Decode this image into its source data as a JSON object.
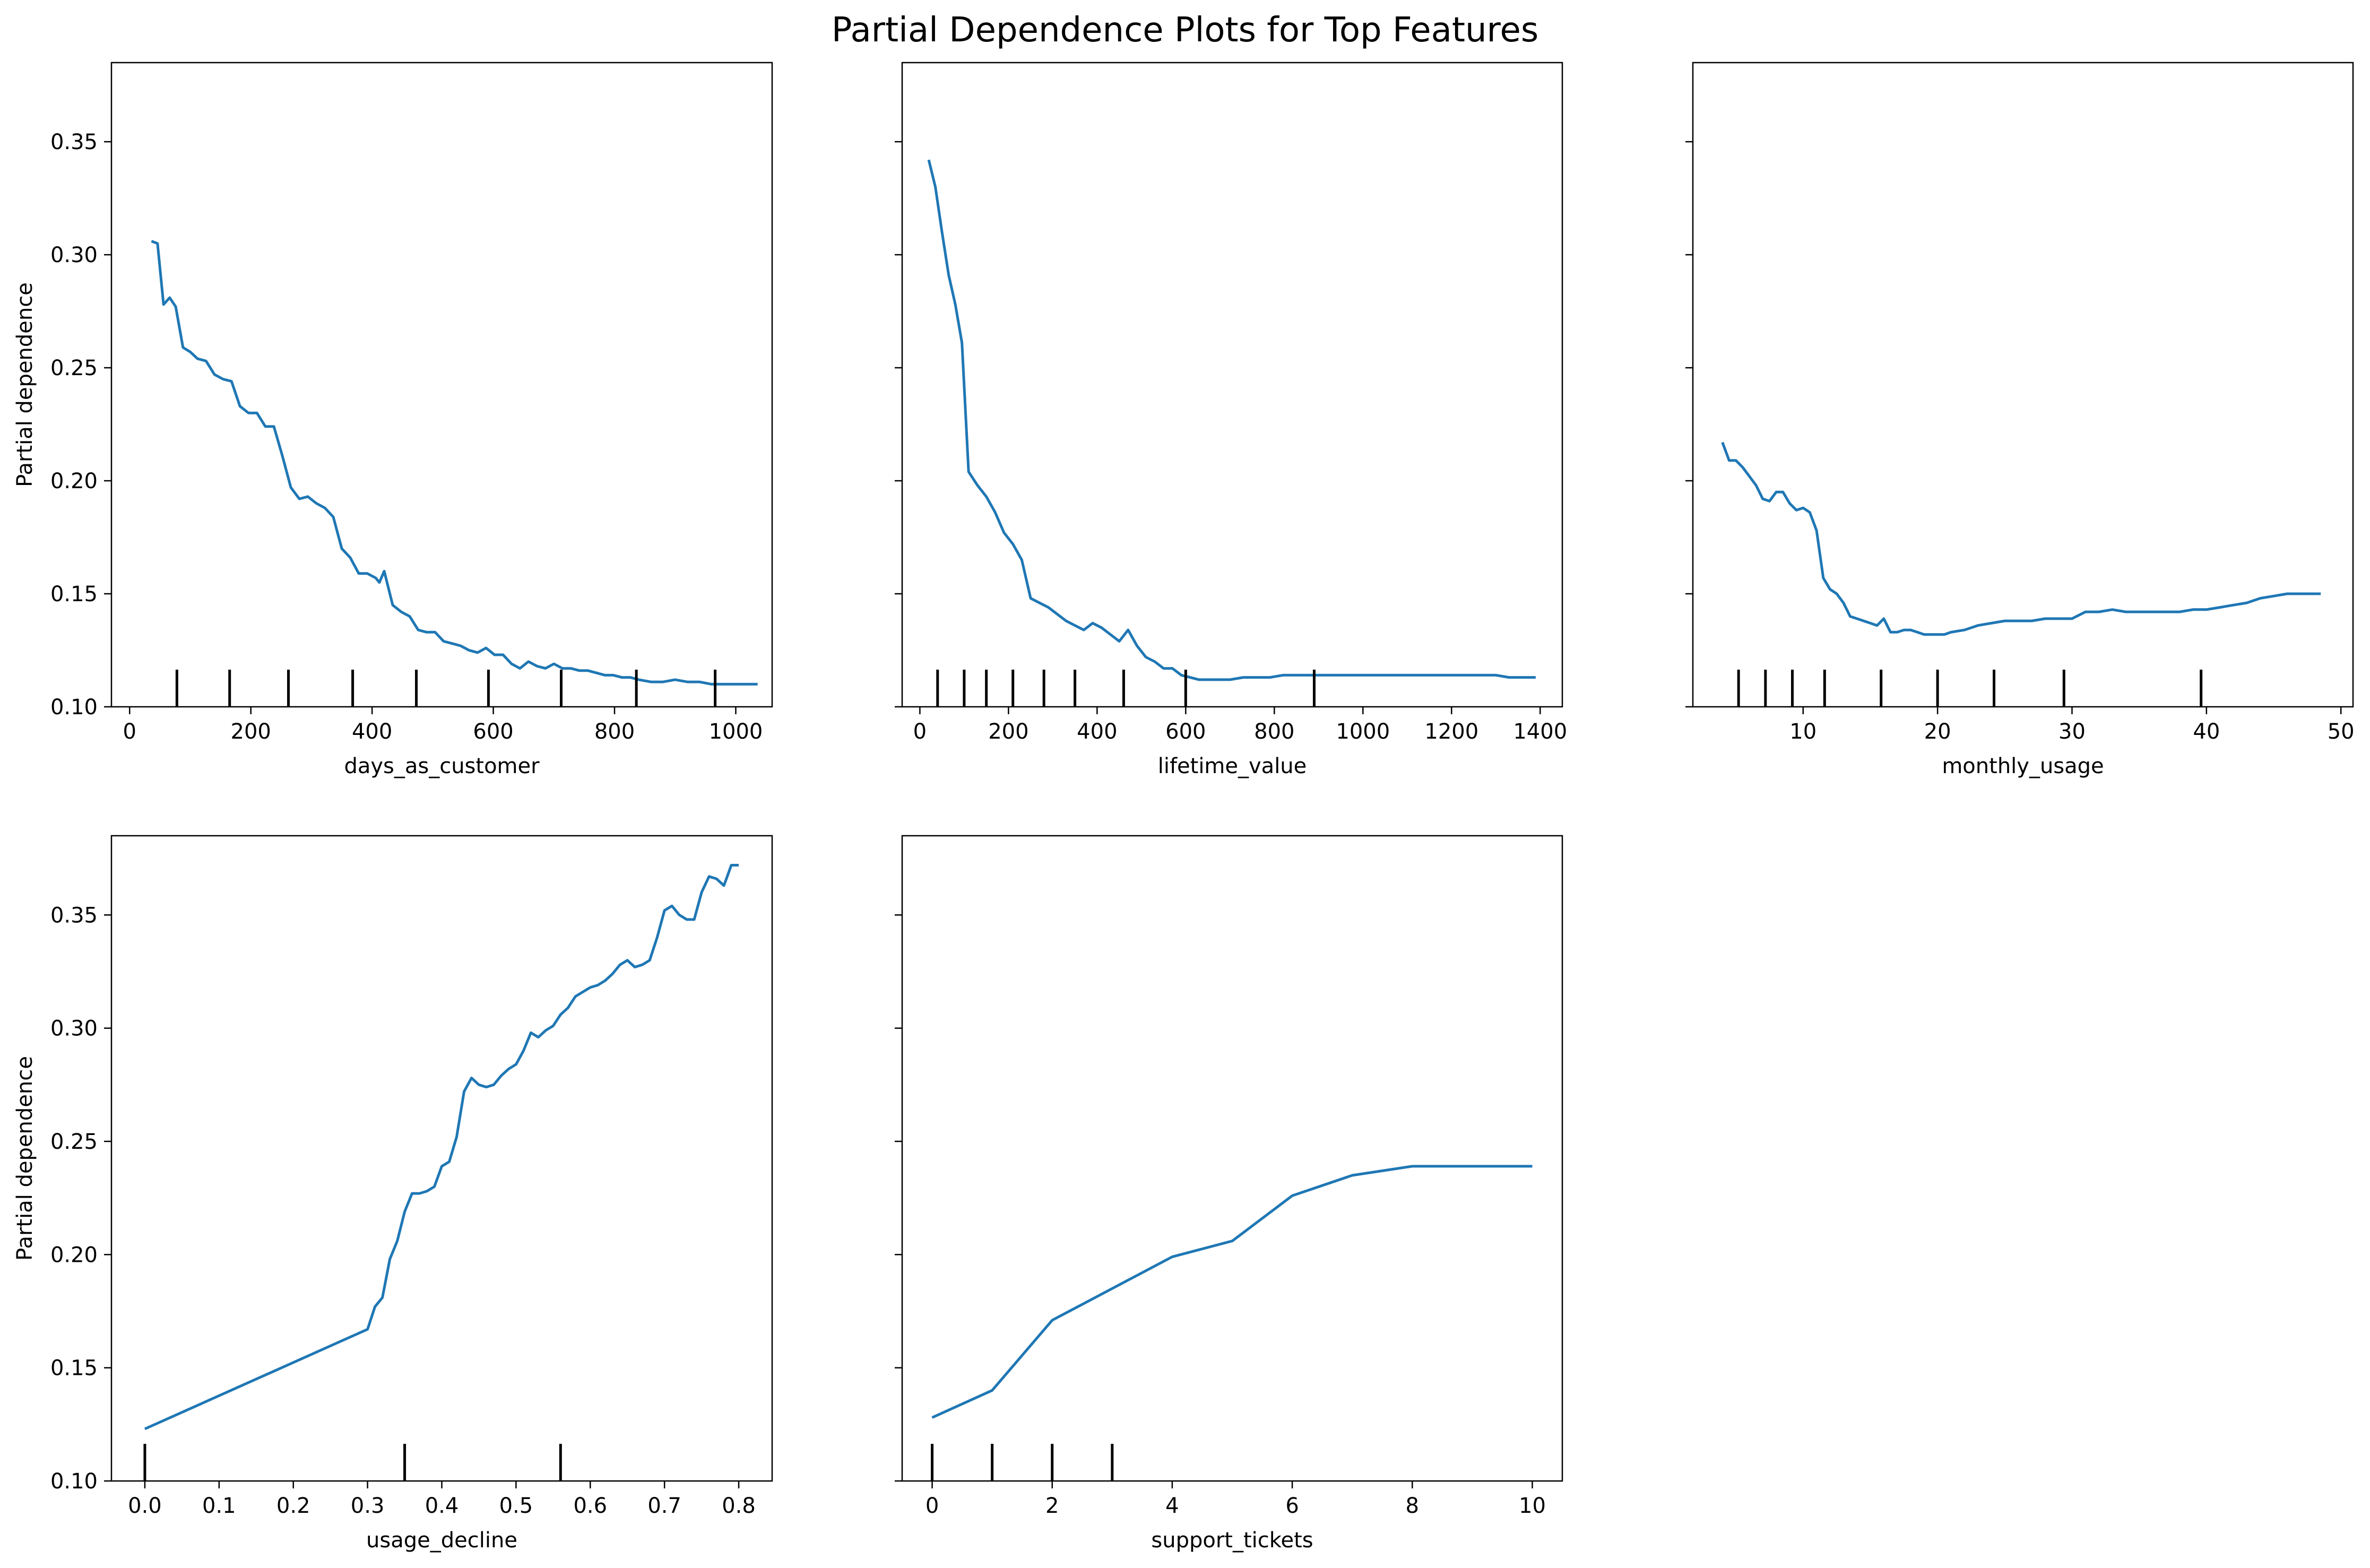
{
  "title": "Partial Dependence Plots for Top Features",
  "colors": {
    "line": "#1f77b4",
    "rug": "#000000",
    "frame": "#000000",
    "background": "#ffffff"
  },
  "chart_data": [
    {
      "type": "line",
      "xlabel": "days_as_customer",
      "ylabel": "Partial dependence",
      "xlim": [
        -30,
        1060
      ],
      "ylim": [
        0.1,
        0.385
      ],
      "xticks": [
        0,
        200,
        400,
        600,
        800,
        1000
      ],
      "yticks": [
        0.1,
        0.15,
        0.2,
        0.25,
        0.3,
        0.35
      ],
      "show_yticklabels": true,
      "rug_deciles": [
        78,
        165,
        262,
        368,
        473,
        592,
        712,
        836,
        966
      ],
      "x": [
        36,
        46,
        56,
        66,
        76,
        88,
        100,
        112,
        126,
        140,
        154,
        168,
        182,
        196,
        210,
        224,
        238,
        252,
        266,
        280,
        294,
        308,
        322,
        336,
        350,
        364,
        378,
        392,
        406,
        412,
        420,
        434,
        448,
        462,
        476,
        490,
        504,
        518,
        532,
        546,
        560,
        574,
        588,
        602,
        616,
        630,
        644,
        658,
        672,
        686,
        700,
        714,
        728,
        742,
        756,
        770,
        784,
        798,
        812,
        826,
        840,
        860,
        880,
        900,
        920,
        940,
        960,
        980,
        1000,
        1020,
        1036
      ],
      "y": [
        0.306,
        0.305,
        0.278,
        0.281,
        0.277,
        0.259,
        0.257,
        0.254,
        0.253,
        0.247,
        0.245,
        0.244,
        0.233,
        0.23,
        0.23,
        0.224,
        0.224,
        0.211,
        0.197,
        0.192,
        0.193,
        0.19,
        0.188,
        0.184,
        0.17,
        0.166,
        0.159,
        0.159,
        0.157,
        0.155,
        0.16,
        0.145,
        0.142,
        0.14,
        0.134,
        0.133,
        0.133,
        0.129,
        0.128,
        0.127,
        0.125,
        0.124,
        0.126,
        0.123,
        0.123,
        0.119,
        0.117,
        0.12,
        0.118,
        0.117,
        0.119,
        0.117,
        0.117,
        0.116,
        0.116,
        0.115,
        0.114,
        0.114,
        0.113,
        0.113,
        0.112,
        0.111,
        0.111,
        0.112,
        0.111,
        0.111,
        0.11,
        0.11,
        0.11,
        0.11,
        0.11
      ]
    },
    {
      "type": "line",
      "xlabel": "lifetime_value",
      "ylabel": "",
      "xlim": [
        -40,
        1450
      ],
      "ylim": [
        0.1,
        0.385
      ],
      "xticks": [
        0,
        200,
        400,
        600,
        800,
        1000,
        1200,
        1400
      ],
      "yticks": [
        0.1,
        0.15,
        0.2,
        0.25,
        0.3,
        0.35
      ],
      "show_yticklabels": false,
      "rug_deciles": [
        40,
        100,
        150,
        210,
        280,
        350,
        460,
        600,
        890
      ],
      "x": [
        20,
        35,
        50,
        65,
        80,
        95,
        110,
        130,
        150,
        170,
        190,
        210,
        230,
        250,
        270,
        290,
        310,
        330,
        350,
        370,
        390,
        410,
        430,
        450,
        470,
        490,
        510,
        530,
        550,
        570,
        590,
        610,
        630,
        650,
        670,
        700,
        730,
        760,
        790,
        820,
        850,
        880,
        910,
        940,
        970,
        1000,
        1030,
        1060,
        1090,
        1120,
        1150,
        1180,
        1210,
        1240,
        1270,
        1300,
        1330,
        1360,
        1390
      ],
      "y": [
        0.342,
        0.33,
        0.31,
        0.291,
        0.278,
        0.261,
        0.204,
        0.198,
        0.193,
        0.186,
        0.177,
        0.172,
        0.165,
        0.148,
        0.146,
        0.144,
        0.141,
        0.138,
        0.136,
        0.134,
        0.137,
        0.135,
        0.132,
        0.129,
        0.134,
        0.127,
        0.122,
        0.12,
        0.117,
        0.117,
        0.114,
        0.113,
        0.112,
        0.112,
        0.112,
        0.112,
        0.113,
        0.113,
        0.113,
        0.114,
        0.114,
        0.114,
        0.114,
        0.114,
        0.114,
        0.114,
        0.114,
        0.114,
        0.114,
        0.114,
        0.114,
        0.114,
        0.114,
        0.114,
        0.114,
        0.114,
        0.113,
        0.113,
        0.113
      ]
    },
    {
      "type": "line",
      "xlabel": "monthly_usage",
      "ylabel": "",
      "xlim": [
        1.8,
        50.9
      ],
      "ylim": [
        0.1,
        0.385
      ],
      "xticks": [
        10,
        20,
        30,
        40,
        50
      ],
      "yticks": [
        0.1,
        0.15,
        0.2,
        0.25,
        0.3,
        0.35
      ],
      "show_yticklabels": false,
      "rug_deciles": [
        5.2,
        7.2,
        9.2,
        11.6,
        15.8,
        20.0,
        24.2,
        29.4,
        39.6
      ],
      "x": [
        4.0,
        4.5,
        5.0,
        5.5,
        6.0,
        6.5,
        7.0,
        7.5,
        8.0,
        8.5,
        9.0,
        9.5,
        10.0,
        10.5,
        11.0,
        11.5,
        12.0,
        12.5,
        13.0,
        13.5,
        14.0,
        14.5,
        15.0,
        15.5,
        16.0,
        16.5,
        17.0,
        17.5,
        18.0,
        18.5,
        19.0,
        19.5,
        20.0,
        20.5,
        21.0,
        22.0,
        23.0,
        24.0,
        25.0,
        26.0,
        27.0,
        28.0,
        29.0,
        30.0,
        31.0,
        32.0,
        33.0,
        34.0,
        35.0,
        36.0,
        37.0,
        38.0,
        39.0,
        40.0,
        41.0,
        42.0,
        43.0,
        44.0,
        45.0,
        46.0,
        47.0,
        48.0,
        48.5
      ],
      "y": [
        0.217,
        0.209,
        0.209,
        0.206,
        0.202,
        0.198,
        0.192,
        0.191,
        0.195,
        0.195,
        0.19,
        0.187,
        0.188,
        0.186,
        0.178,
        0.157,
        0.152,
        0.15,
        0.146,
        0.14,
        0.139,
        0.138,
        0.137,
        0.136,
        0.139,
        0.133,
        0.133,
        0.134,
        0.134,
        0.133,
        0.132,
        0.132,
        0.132,
        0.132,
        0.133,
        0.134,
        0.136,
        0.137,
        0.138,
        0.138,
        0.138,
        0.139,
        0.139,
        0.139,
        0.142,
        0.142,
        0.143,
        0.142,
        0.142,
        0.142,
        0.142,
        0.142,
        0.143,
        0.143,
        0.144,
        0.145,
        0.146,
        0.148,
        0.149,
        0.15,
        0.15,
        0.15,
        0.15
      ]
    },
    {
      "type": "line",
      "xlabel": "usage_decline",
      "ylabel": "Partial dependence",
      "xlim": [
        -0.045,
        0.845
      ],
      "ylim": [
        0.1,
        0.385
      ],
      "xticks": [
        0.0,
        0.1,
        0.2,
        0.3,
        0.4,
        0.5,
        0.6,
        0.7,
        0.8
      ],
      "xtick_labels": [
        "0.0",
        "0.1",
        "0.2",
        "0.3",
        "0.4",
        "0.5",
        "0.6",
        "0.7",
        "0.8"
      ],
      "yticks": [
        0.1,
        0.15,
        0.2,
        0.25,
        0.3,
        0.35
      ],
      "show_yticklabels": true,
      "rug_deciles": [
        0.0,
        0.35,
        0.56
      ],
      "x": [
        0.0,
        0.3,
        0.31,
        0.32,
        0.33,
        0.34,
        0.35,
        0.36,
        0.37,
        0.38,
        0.39,
        0.4,
        0.41,
        0.42,
        0.43,
        0.44,
        0.45,
        0.46,
        0.47,
        0.48,
        0.49,
        0.5,
        0.51,
        0.52,
        0.53,
        0.54,
        0.55,
        0.56,
        0.57,
        0.58,
        0.59,
        0.6,
        0.61,
        0.62,
        0.63,
        0.64,
        0.65,
        0.66,
        0.67,
        0.68,
        0.69,
        0.7,
        0.71,
        0.72,
        0.73,
        0.74,
        0.75,
        0.76,
        0.77,
        0.78,
        0.79,
        0.8
      ],
      "y": [
        0.123,
        0.167,
        0.177,
        0.181,
        0.198,
        0.206,
        0.219,
        0.227,
        0.227,
        0.228,
        0.23,
        0.239,
        0.241,
        0.252,
        0.272,
        0.278,
        0.275,
        0.274,
        0.275,
        0.279,
        0.282,
        0.284,
        0.29,
        0.298,
        0.296,
        0.299,
        0.301,
        0.306,
        0.309,
        0.314,
        0.316,
        0.318,
        0.319,
        0.321,
        0.324,
        0.328,
        0.33,
        0.327,
        0.328,
        0.33,
        0.34,
        0.352,
        0.354,
        0.35,
        0.348,
        0.348,
        0.36,
        0.367,
        0.366,
        0.363,
        0.372,
        0.372
      ]
    },
    {
      "type": "line",
      "xlabel": "support_tickets",
      "ylabel": "",
      "xlim": [
        -0.5,
        10.5
      ],
      "ylim": [
        0.1,
        0.385
      ],
      "xticks": [
        0,
        2,
        4,
        6,
        8,
        10
      ],
      "yticks": [
        0.1,
        0.15,
        0.2,
        0.25,
        0.3,
        0.35
      ],
      "show_yticklabels": false,
      "rug_deciles": [
        0,
        1,
        2,
        3
      ],
      "x": [
        0,
        1,
        2,
        3,
        4,
        5,
        6,
        7,
        8,
        9,
        10
      ],
      "y": [
        0.128,
        0.14,
        0.171,
        0.185,
        0.199,
        0.206,
        0.226,
        0.235,
        0.239,
        0.239,
        0.239
      ]
    }
  ]
}
